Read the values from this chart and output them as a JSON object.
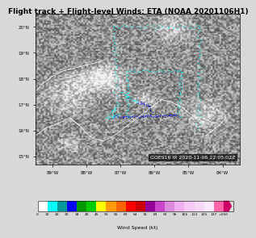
{
  "title": "Flight track + Flight-level Winds: ETA (NOAA 20201106H1)",
  "title_fontsize": 6.5,
  "map_xlim": [
    -89.5,
    -83.5
  ],
  "map_ylim": [
    14.7,
    20.5
  ],
  "xlabel_ticks": [
    -89,
    -88,
    -87,
    -86,
    -85,
    -84
  ],
  "xlabel_labels": [
    "89°W",
    "88°W",
    "87°W",
    "86°W",
    "85°W",
    "84°W"
  ],
  "ylabel_ticks": [
    15,
    16,
    17,
    18,
    19,
    20
  ],
  "ylabel_labels": [
    "15°N",
    "16°N",
    "17°N",
    "18°N",
    "19°N",
    "20°N"
  ],
  "timestamp_text": "GOES16 IR 2020-11-06 22:05:02Z",
  "timestamp_fontsize": 4.5,
  "colorbar_values": [
    0,
    10,
    20,
    30,
    34,
    40,
    45,
    50,
    55,
    60,
    64,
    74,
    83,
    90,
    96,
    105,
    113,
    125,
    137,
    150
  ],
  "colorbar_labels": [
    "0",
    "10",
    "20",
    "30",
    "34",
    "40",
    "45",
    "50",
    "55",
    "60",
    "64",
    "74",
    "83",
    "90",
    "96",
    "105",
    "113",
    "125",
    "137",
    ">150"
  ],
  "colorbar_colors": [
    "#ffffff",
    "#00ffff",
    "#009999",
    "#0000ff",
    "#009900",
    "#00cc00",
    "#ffff00",
    "#ff9900",
    "#ff6600",
    "#ff0000",
    "#cc0000",
    "#990099",
    "#cc44cc",
    "#dd88dd",
    "#eeb0ee",
    "#f5c8f5",
    "#f8d8f8",
    "#fce8fc",
    "#ff66aa",
    "#cc0066"
  ],
  "colorbar_xlabel": "Wind Speed (kt)",
  "bg_color": "#d8d8d8",
  "map_bg_color": "#888888",
  "grid_color": "#aaaaaa",
  "coastline_color": "#ffffff",
  "track_color_cyan": "#00ffff",
  "track_color_blue": "#0000ff",
  "track_color_dkblue": "#000099"
}
